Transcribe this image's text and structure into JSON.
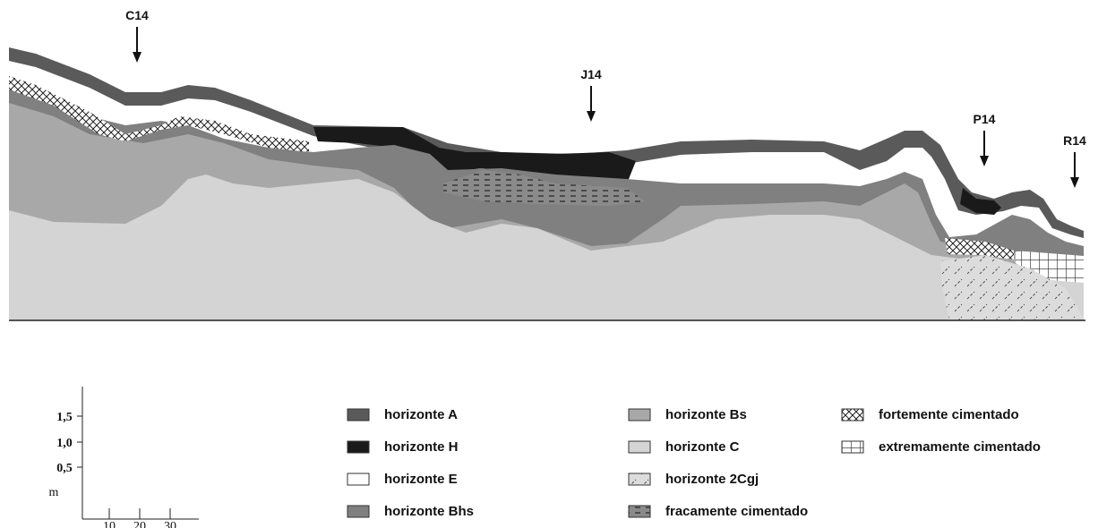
{
  "profiles": [
    "C14",
    "J14",
    "P14",
    "R14"
  ],
  "legend": [
    {
      "key": "A",
      "label": "horizonte A"
    },
    {
      "key": "H",
      "label": "horizonte H"
    },
    {
      "key": "E",
      "label": "horizonte E"
    },
    {
      "key": "Bhs",
      "label": "horizonte Bhs"
    },
    {
      "key": "Bs",
      "label": "horizonte Bs"
    },
    {
      "key": "C",
      "label": "horizonte C"
    },
    {
      "key": "Cgj",
      "label": "horizonte 2Cgj"
    },
    {
      "key": "fraca",
      "label": "fracamente cimentado"
    },
    {
      "key": "forte",
      "label": "fortemente cimentado"
    },
    {
      "key": "extrema",
      "label": "extremamente cimentado"
    }
  ],
  "scale": {
    "y_labels": [
      "1,5",
      "1,0",
      "0,5",
      "m"
    ],
    "x_labels": [
      "10",
      "20",
      "30"
    ]
  }
}
